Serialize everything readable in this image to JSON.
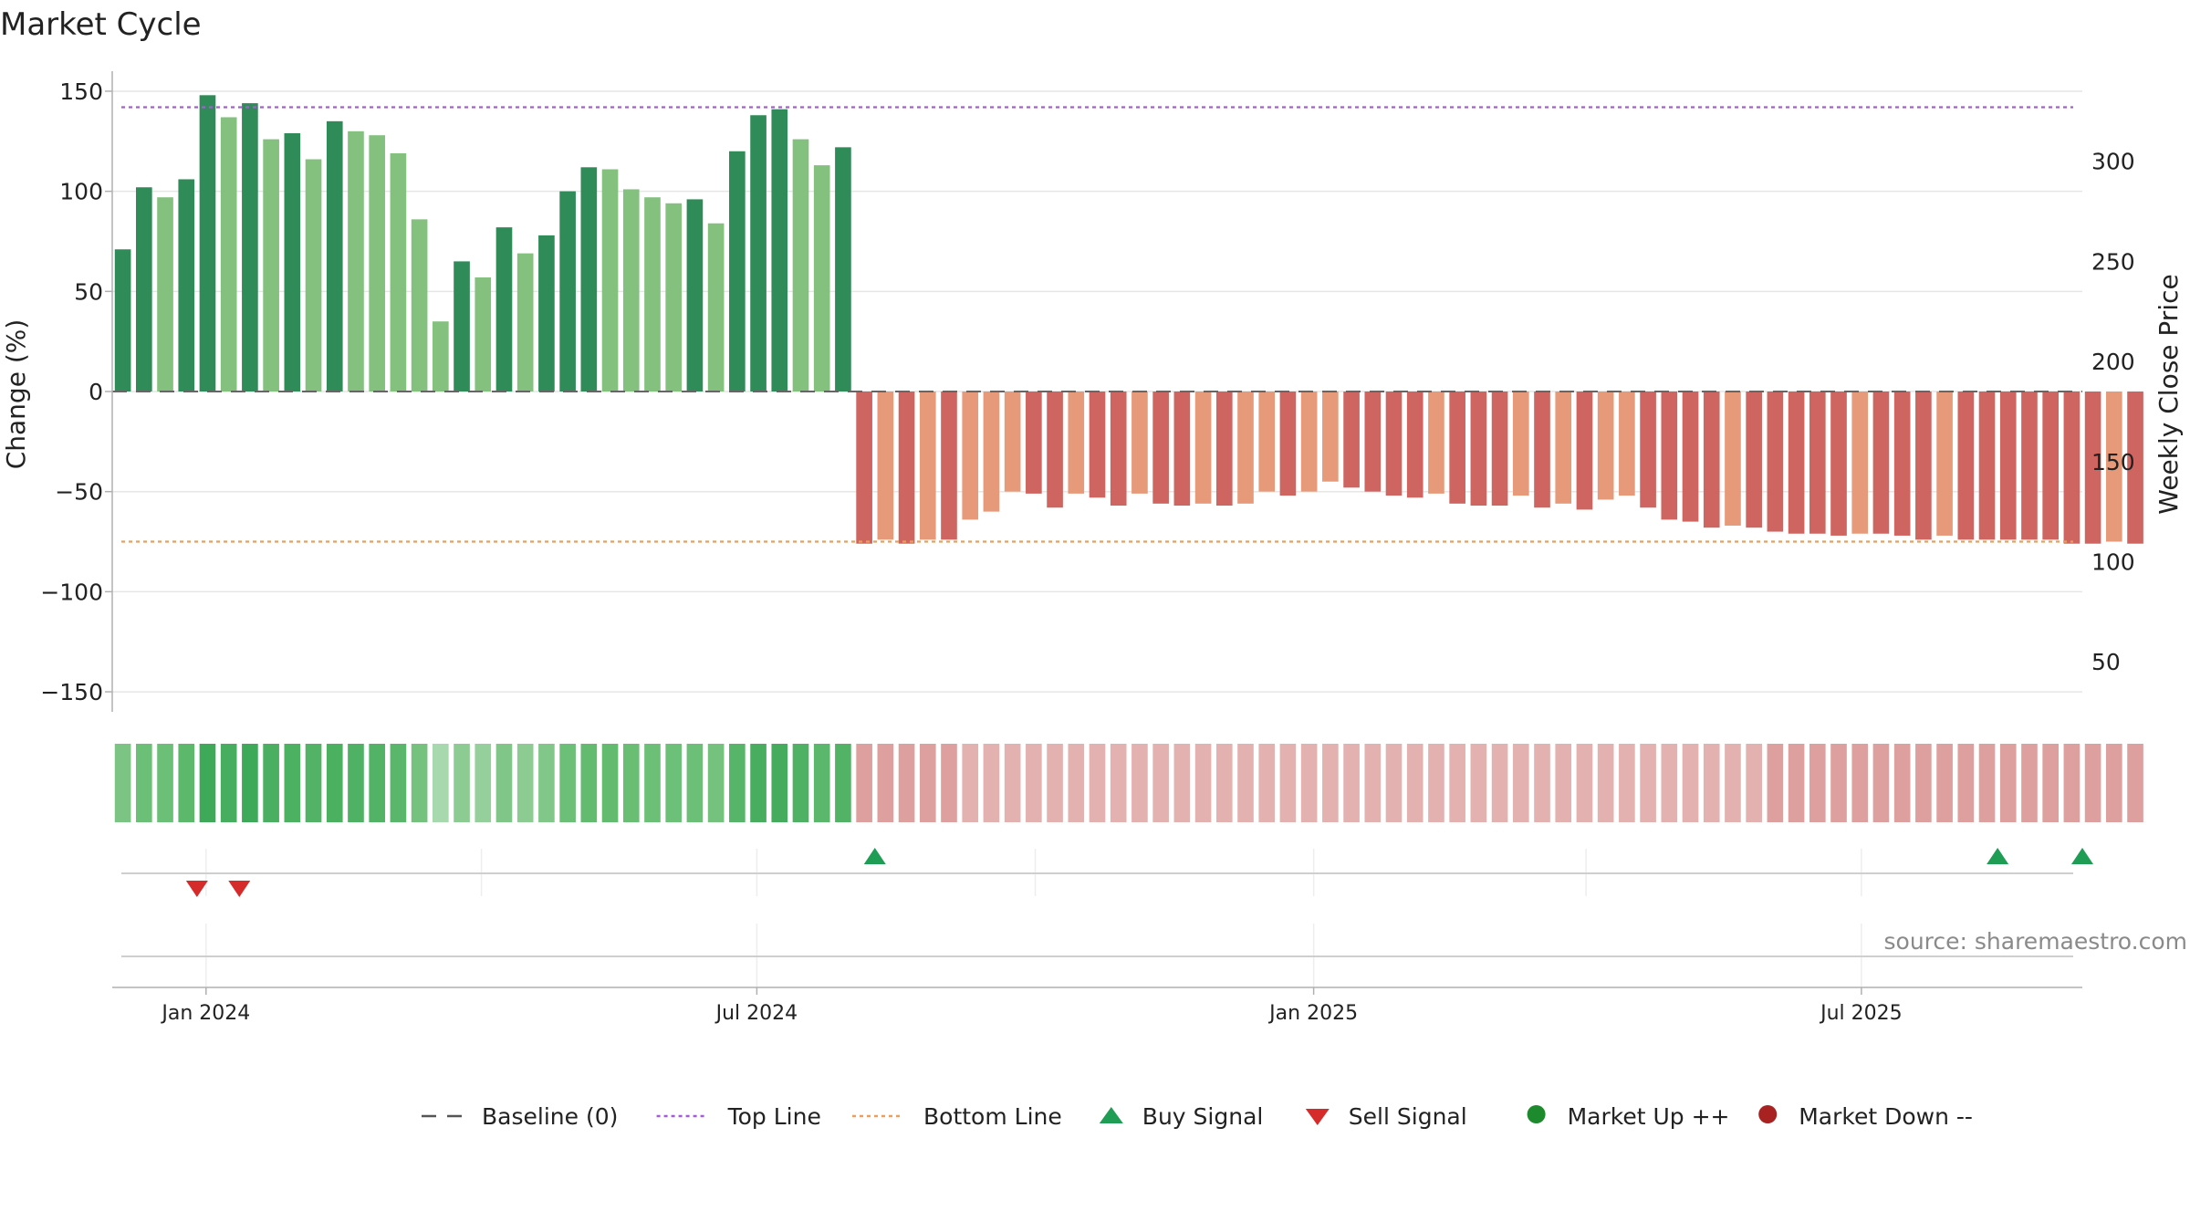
{
  "chart_data": {
    "type": "bar",
    "title": "Market Cycle",
    "ylabel": "Change (%)",
    "y2label": "Weekly Close Price",
    "ylim": [
      -160,
      160
    ],
    "y2lim": [
      25,
      345
    ],
    "y_ticks": [
      150,
      100,
      50,
      0,
      -50,
      -100,
      -150
    ],
    "y_tick_labels": [
      "150",
      "100",
      "50",
      "0",
      "−50",
      "−100",
      "−150"
    ],
    "y2_ticks": [
      300,
      250,
      200,
      150,
      100,
      50
    ],
    "y2_tick_labels": [
      "300",
      "250",
      "200",
      "150",
      "100",
      "50"
    ],
    "x_start": "2023-12-01",
    "x_end": "2025-09-12",
    "x_ticks": [
      {
        "date": "2024-01-01",
        "label": "Jan 2024"
      },
      {
        "date": "2024-07-01",
        "label": "Jul 2024"
      },
      {
        "date": "2025-01-01",
        "label": "Jan 2025"
      },
      {
        "date": "2025-07-01",
        "label": "Jul 2025"
      }
    ],
    "first_bar_date": "2023-12-01",
    "bar_interval_days": 7,
    "values": [
      71,
      102,
      97,
      106,
      148,
      137,
      144,
      126,
      129,
      116,
      135,
      130,
      128,
      119,
      86,
      35,
      65,
      57,
      82,
      69,
      78,
      100,
      112,
      111,
      101,
      97,
      94,
      96,
      84,
      120,
      138,
      141,
      126,
      113,
      122,
      -76,
      -74,
      -76,
      -74,
      -74,
      -64,
      -60,
      -50,
      -51,
      -58,
      -51,
      -53,
      -57,
      -51,
      -56,
      -57,
      -56,
      -57,
      -56,
      -50,
      -52,
      -50,
      -45,
      -48,
      -50,
      -52,
      -53,
      -51,
      -56,
      -57,
      -57,
      -52,
      -58,
      -56,
      -59,
      -54,
      -52,
      -58,
      -64,
      -65,
      -68,
      -67,
      -68,
      -70,
      -71,
      -71,
      -72,
      -71,
      -71,
      -72,
      -74,
      -72,
      -74,
      -74,
      -74,
      -74,
      -74,
      -76,
      -76,
      -75,
      -76
    ],
    "top_line": 142,
    "bottom_line": -75,
    "baseline": 0,
    "strip_colors": [
      "#7cc483",
      "#6bbf76",
      "#6bbf76",
      "#5cb86a",
      "#3fa95a",
      "#47ad5f",
      "#3fa95a",
      "#4aaf60",
      "#4db162",
      "#52b366",
      "#4cb061",
      "#4fb163",
      "#52b366",
      "#59b66a",
      "#75c27f",
      "#a8d8ad",
      "#8ccc93",
      "#95cf9b",
      "#7fc688",
      "#8ccc93",
      "#82c78a",
      "#6bbf76",
      "#63bb70",
      "#63bb70",
      "#69be74",
      "#6bbf76",
      "#6dc078",
      "#6bbf76",
      "#74c27e",
      "#57b569",
      "#48ad5f",
      "#45ac5d",
      "#4fb163",
      "#5bb76b",
      "#52b366"
    ],
    "strip_neg_colors": [
      "#dea09e",
      "#e3b2b0"
    ],
    "buy_signal_dates": [
      "2024-08-09",
      "2025-08-15",
      "2025-09-12"
    ],
    "sell_signal_dates": [
      "2023-12-29",
      "2024-01-12"
    ],
    "source": "source: sharemaestro.com",
    "legend": [
      {
        "label": "Baseline (0)",
        "marker": "dash"
      },
      {
        "label": "Top Line",
        "marker": "dot-purple"
      },
      {
        "label": "Bottom Line",
        "marker": "dot-orange"
      },
      {
        "label": "Buy Signal",
        "marker": "triangle-up"
      },
      {
        "label": "Sell Signal",
        "marker": "triangle-down"
      },
      {
        "label": "Market Up ++",
        "marker": "circle-green"
      },
      {
        "label": "Market Down --",
        "marker": "circle-red"
      }
    ]
  },
  "colors": {
    "pos_dark": "#2f8b57",
    "pos_light": "#84c17f",
    "neg_dark": "#cf6560",
    "neg_light": "#e69a7a",
    "top_line": "#a35fd1",
    "bottom_line": "#e8a05a",
    "buy": "#1f9d55",
    "sell": "#d62b2b",
    "market_up": "#1e8a2e",
    "market_down": "#a82222",
    "grid": "#e6e6e6",
    "axis": "#b0b0b0",
    "text": "#222222",
    "source_text": "#8a8a8a"
  }
}
